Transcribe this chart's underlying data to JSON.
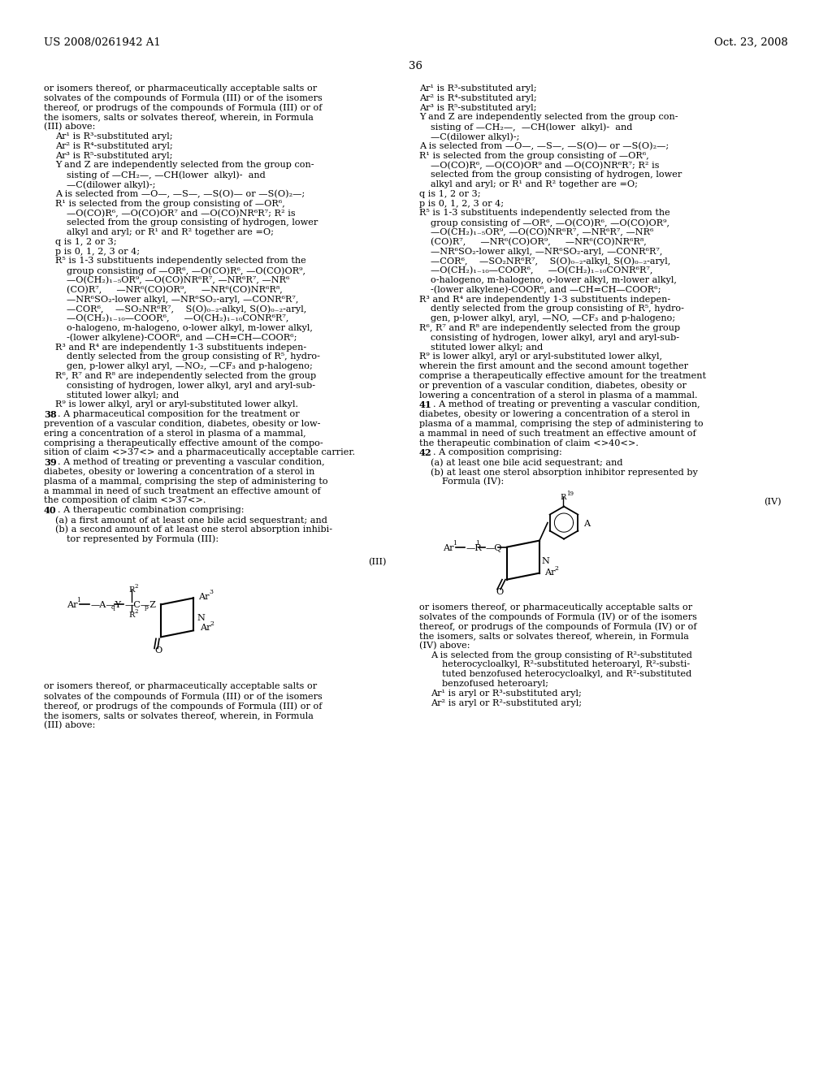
{
  "bg": "#ffffff",
  "header_left": "US 2008/0261942 A1",
  "header_right": "Oct. 23, 2008",
  "page_num": "36"
}
